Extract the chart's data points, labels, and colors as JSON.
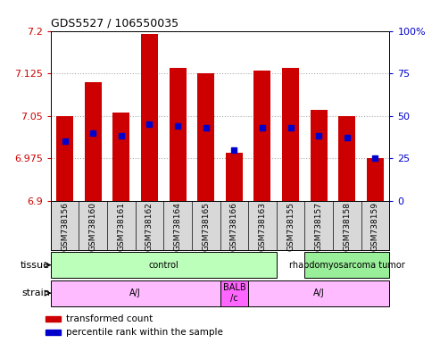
{
  "title": "GDS5527 / 106550035",
  "samples": [
    "GSM738156",
    "GSM738160",
    "GSM738161",
    "GSM738162",
    "GSM738164",
    "GSM738165",
    "GSM738166",
    "GSM738163",
    "GSM738155",
    "GSM738157",
    "GSM738158",
    "GSM738159"
  ],
  "bar_tops": [
    7.05,
    7.11,
    7.055,
    7.195,
    7.135,
    7.125,
    6.985,
    7.13,
    7.135,
    7.06,
    7.05,
    6.975
  ],
  "bar_bottoms": [
    6.9,
    6.9,
    6.9,
    6.9,
    6.9,
    6.9,
    6.9,
    6.9,
    6.9,
    6.9,
    6.9,
    6.9
  ],
  "blue_markers": [
    35,
    40,
    38,
    45,
    44,
    43,
    30,
    43,
    43,
    38,
    37,
    25
  ],
  "ymin": 6.9,
  "ymax": 7.2,
  "yticks_left": [
    6.9,
    6.975,
    7.05,
    7.125,
    7.2
  ],
  "yticks_right": [
    0,
    25,
    50,
    75,
    100
  ],
  "bar_color": "#cc0000",
  "blue_color": "#0000cc",
  "legend_red": "transformed count",
  "legend_blue": "percentile rank within the sample",
  "tissue_label": "tissue",
  "strain_label": "strain",
  "tissue_groups": [
    {
      "label": "control",
      "xstart": -0.5,
      "xend": 7.5,
      "color": "#bbffbb"
    },
    {
      "label": "rhabdomyosarcoma tumor",
      "xstart": 8.5,
      "xend": 11.5,
      "color": "#99ee99"
    }
  ],
  "strain_groups": [
    {
      "label": "A/J",
      "xstart": -0.5,
      "xend": 5.5,
      "color": "#ffbbff"
    },
    {
      "label": "BALB\n/c",
      "xstart": 5.5,
      "xend": 6.5,
      "color": "#ff66ff"
    },
    {
      "label": "A/J",
      "xstart": 6.5,
      "xend": 11.5,
      "color": "#ffbbff"
    }
  ]
}
